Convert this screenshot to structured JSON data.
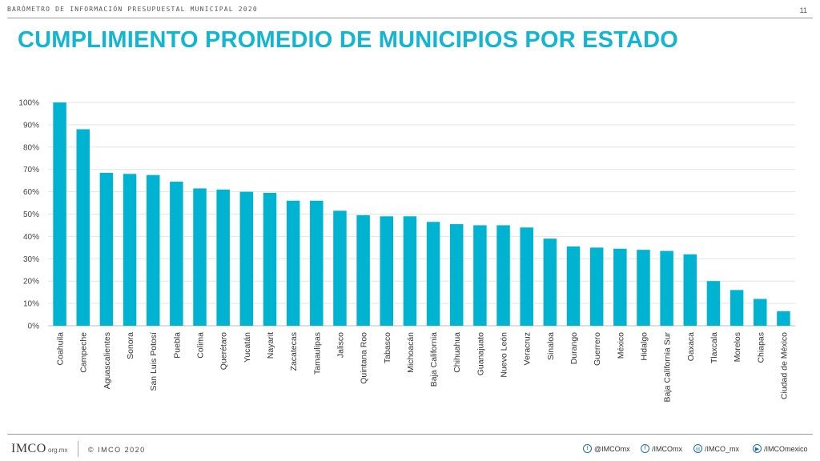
{
  "header": {
    "title": "BARÓMETRO DE INFORMACIÓN PRESUPUESTAL MUNICIPAL 2020",
    "page_number": "11"
  },
  "main": {
    "title": "CUMPLIMIENTO PROMEDIO DE MUNICIPIOS POR ESTADO"
  },
  "footer": {
    "logo_text": "IMCO",
    "logo_sub": "org.mx",
    "copyright": "© IMCO 2020",
    "social": [
      {
        "icon": "twitter-icon",
        "glyph": "t",
        "label": "@IMCOmx"
      },
      {
        "icon": "facebook-icon",
        "glyph": "f",
        "label": "/IMCOmx"
      },
      {
        "icon": "instagram-icon",
        "glyph": "◎",
        "label": "/IMCO_mx"
      },
      {
        "icon": "youtube-icon",
        "glyph": "▶",
        "label": "/IMCOmexico"
      }
    ]
  },
  "colors": {
    "accent": "#12b5d3",
    "bar": "#00b3d1",
    "grid": "#e3e3e3"
  },
  "chart_data": {
    "type": "bar",
    "title": "",
    "xlabel": "",
    "ylabel": "",
    "ylim": [
      0,
      100
    ],
    "y_ticks": [
      "0%",
      "10%",
      "20%",
      "30%",
      "40%",
      "50%",
      "60%",
      "70%",
      "80%",
      "90%",
      "100%"
    ],
    "grid": true,
    "categories": [
      "Coahuila",
      "Campeche",
      "Aguascalientes",
      "Sonora",
      "San Luis Potosí",
      "Puebla",
      "Colima",
      "Querétaro",
      "Yucatán",
      "Nayarit",
      "Zacatecas",
      "Tamaulipas",
      "Jalisco",
      "Quintana Roo",
      "Tabasco",
      "Michoacán",
      "Baja California",
      "Chihuahua",
      "Guanajuato",
      "Nuevo León",
      "Veracruz",
      "Sinaloa",
      "Durango",
      "Guerrero",
      "México",
      "Hidalgo",
      "Baja California Sur",
      "Oaxaca",
      "Tlaxcala",
      "Morelos",
      "Chiapas",
      "Ciudad de México"
    ],
    "values": [
      100,
      88,
      68.5,
      68,
      67.5,
      64.5,
      61.5,
      61,
      60,
      59.5,
      56,
      56,
      51.5,
      49.5,
      49,
      49,
      46.5,
      45.5,
      45,
      45,
      44,
      39,
      35.5,
      35,
      34.5,
      34,
      33.5,
      32,
      20,
      16,
      12,
      6.5
    ]
  }
}
